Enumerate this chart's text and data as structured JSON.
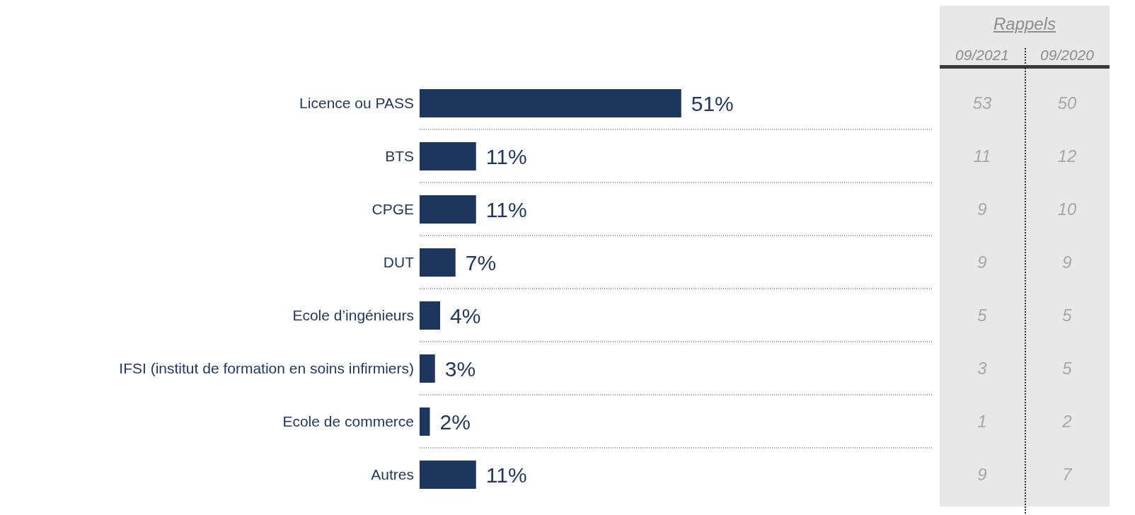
{
  "chart_data": {
    "type": "bar",
    "orientation": "horizontal",
    "categories": [
      "Licence ou PASS",
      "BTS",
      "CPGE",
      "DUT",
      "Ecole d’ingénieurs",
      "IFSI (institut de formation en soins infirmiers)",
      "Ecole de commerce",
      "Autres"
    ],
    "values": [
      51,
      11,
      11,
      7,
      4,
      3,
      2,
      11
    ],
    "value_labels": [
      "51%",
      "11%",
      "11%",
      "7%",
      "4%",
      "3%",
      "2%",
      "11%"
    ],
    "color": "#1d365d",
    "xlim": [
      0,
      100
    ],
    "tick_labels": "y",
    "grid": "y",
    "annotations": [
      "Rappels",
      "09/2021",
      "09/2020",
      "53",
      "50",
      "11",
      "12",
      "9",
      "10",
      "9",
      "9",
      "5",
      "5",
      "3",
      "5",
      "1",
      "2",
      "9",
      "7"
    ]
  }
}
